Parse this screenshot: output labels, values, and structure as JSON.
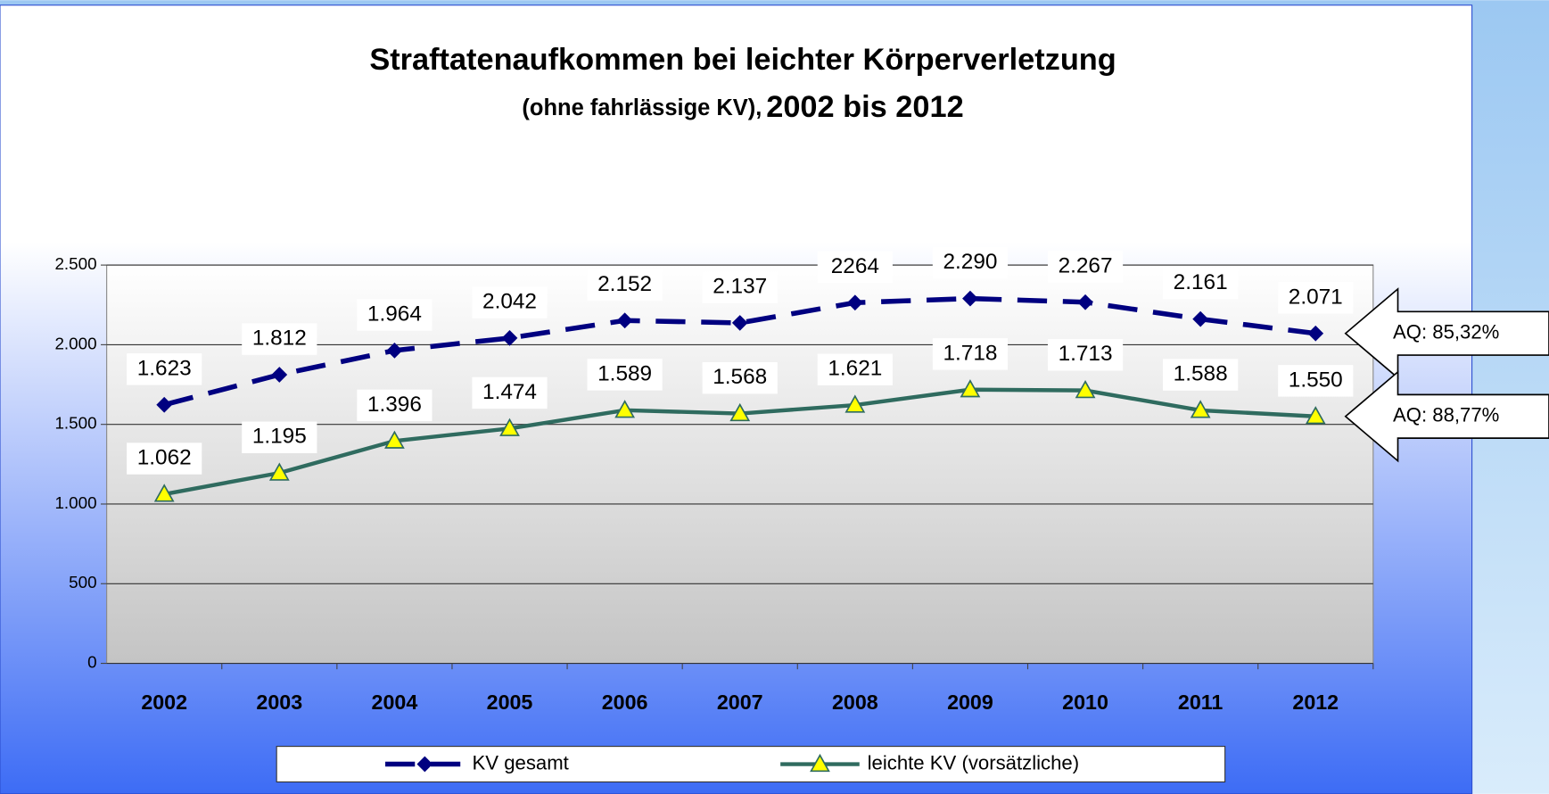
{
  "chart_data": {
    "type": "line",
    "title": "Straftatenaufkommen bei leichter Körperverletzung",
    "subtitle": [
      "(ohne fahrlässige KV),",
      "2002 bis 2012"
    ],
    "categories": [
      "2002",
      "2003",
      "2004",
      "2005",
      "2006",
      "2007",
      "2008",
      "2009",
      "2010",
      "2011",
      "2012"
    ],
    "series": [
      {
        "name": "KV gesamt",
        "color": "#000080",
        "values": [
          1623,
          1812,
          1964,
          2042,
          2152,
          2137,
          2264,
          2290,
          2267,
          2161,
          2071
        ],
        "value_labels": [
          "1.623",
          "1.812",
          "1.964",
          "2.042",
          "2.152",
          "2.137",
          "2264",
          "2.290",
          "2.267",
          "2.161",
          "2.071"
        ]
      },
      {
        "name": "leichte KV (vorsätzliche)",
        "color": "#2f6b5f",
        "values": [
          1062,
          1195,
          1396,
          1474,
          1589,
          1568,
          1621,
          1718,
          1713,
          1588,
          1550
        ],
        "value_labels": [
          "1.062",
          "1.195",
          "1.396",
          "1.474",
          "1.589",
          "1.568",
          "1.621",
          "1.718",
          "1.713",
          "1.588",
          "1.550"
        ]
      }
    ],
    "annotations": [
      "AQ: 85,32%",
      "AQ: 88,77%"
    ],
    "ylim": [
      0,
      2500
    ],
    "yticks": [
      0,
      500,
      {
        "value": 1000,
        "label": "1.000"
      },
      {
        "value": 1500,
        "label": "1.500"
      },
      {
        "value": 2000,
        "label": "2.000"
      },
      {
        "value": 2500,
        "label": "2.500"
      }
    ],
    "grid": true
  }
}
